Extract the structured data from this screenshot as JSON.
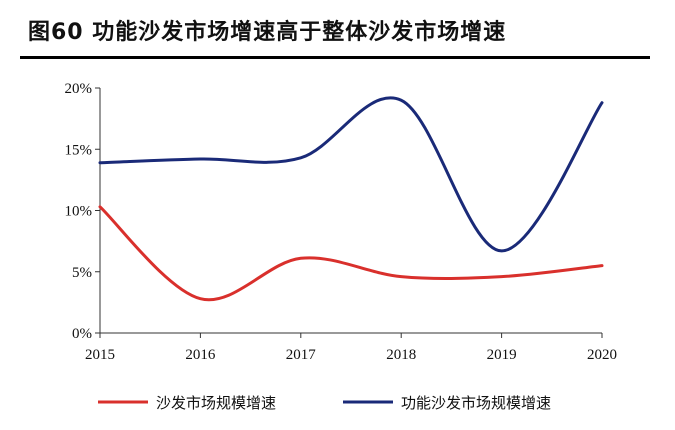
{
  "header": {
    "title": "图60 功能沙发市场增速高于整体沙发市场增速"
  },
  "chart_data": {
    "type": "line",
    "title": "",
    "xlabel": "",
    "ylabel": "",
    "categories": [
      "2015",
      "2016",
      "2017",
      "2018",
      "2019",
      "2020"
    ],
    "y_ticks": [
      "0%",
      "5%",
      "10%",
      "15%",
      "20%"
    ],
    "ylim": [
      0,
      20
    ],
    "grid": false,
    "legend_position": "bottom",
    "series": [
      {
        "name": "沙发市场规模增速",
        "color": "#d9302c",
        "values": [
          10.3,
          2.8,
          6.1,
          4.6,
          4.6,
          5.5
        ]
      },
      {
        "name": "功能沙发市场规模增速",
        "color": "#1a2a78",
        "values": [
          13.9,
          14.2,
          14.3,
          19.0,
          6.7,
          18.8
        ]
      }
    ]
  }
}
